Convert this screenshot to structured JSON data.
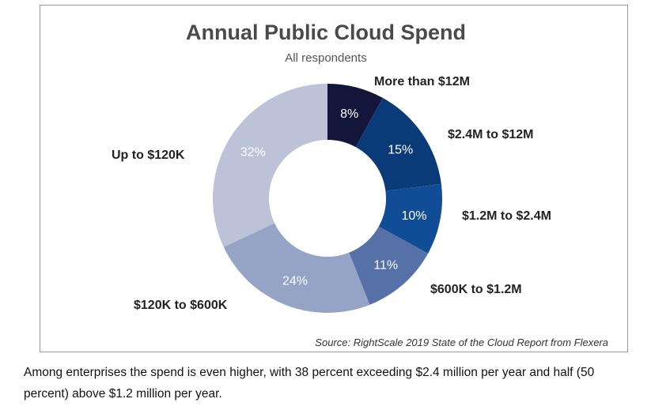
{
  "chart_data": {
    "type": "pie",
    "variant": "donut",
    "title": "Annual Public Cloud Spend",
    "subtitle": "All respondents",
    "source": "Source: RightScale 2019 State of the Cloud Report from Flexera",
    "unit": "%",
    "start_angle": "12 o'clock",
    "direction": "clockwise",
    "slices": [
      {
        "label": "More than $12M",
        "value": 8,
        "display": "8%",
        "color": "#13163b"
      },
      {
        "label": "$2.4M to $12M",
        "value": 15,
        "display": "15%",
        "color": "#0b3a78"
      },
      {
        "label": "$1.2M to $2.4M",
        "value": 10,
        "display": "10%",
        "color": "#114c96"
      },
      {
        "label": "$600K to $1.2M",
        "value": 11,
        "display": "11%",
        "color": "#5671a8"
      },
      {
        "label": "$120K to $600K",
        "value": 24,
        "display": "24%",
        "color": "#94a3c6"
      },
      {
        "label": "Up to $120K",
        "value": 32,
        "display": "32%",
        "color": "#bcc3d9"
      }
    ]
  },
  "caption": "Among enterprises the spend is even higher, with 38 percent exceeding $2.4 million per year and half (50 percent) above $1.2 million per year."
}
